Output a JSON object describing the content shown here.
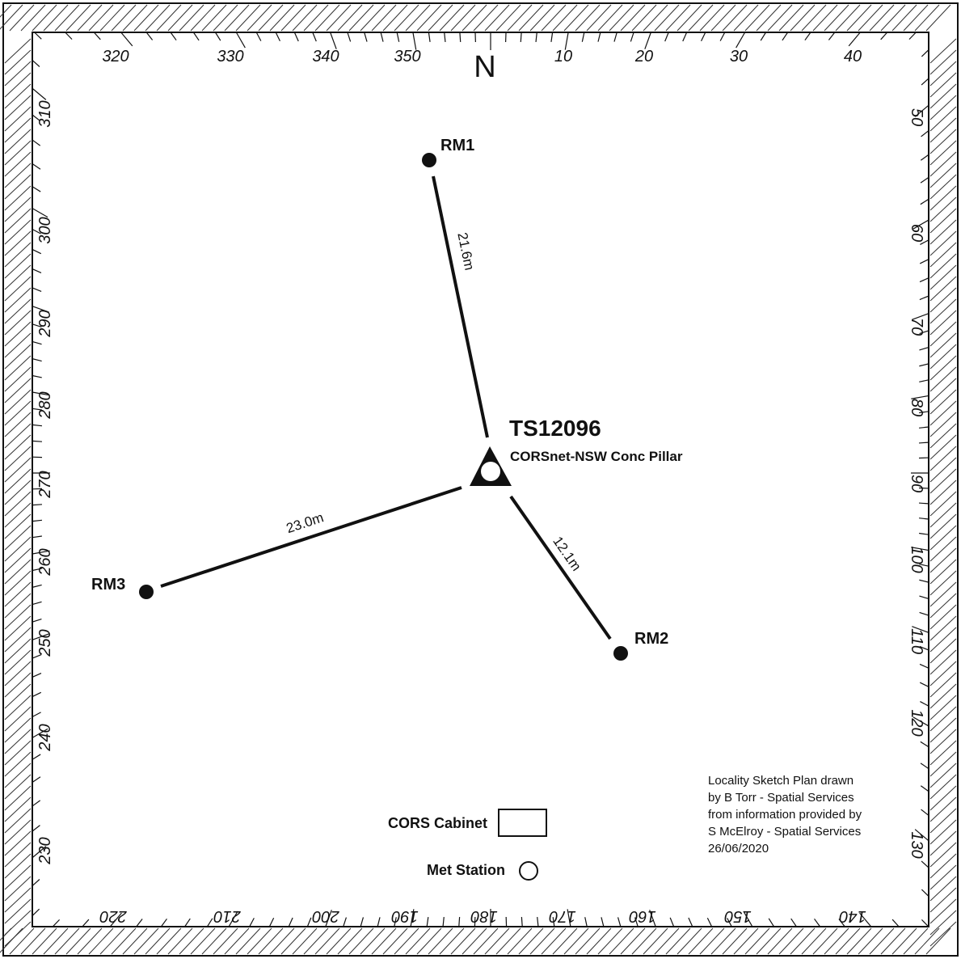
{
  "north_label": "N",
  "mark": {
    "id": "TS12096",
    "description": "CORSnet-NSW Conc Pillar"
  },
  "reference_marks": [
    {
      "name": "RM1",
      "distance": "21.6m"
    },
    {
      "name": "RM2",
      "distance": "12.1m"
    },
    {
      "name": "RM3",
      "distance": "23.0m"
    }
  ],
  "bearing_labels": {
    "top": [
      "320",
      "330",
      "340",
      "350",
      "10",
      "20",
      "30",
      "40"
    ],
    "right": [
      "50",
      "60",
      "70",
      "80",
      "90",
      "100",
      "110",
      "120",
      "130"
    ],
    "bottom": [
      "220",
      "210",
      "200",
      "190",
      "180",
      "170",
      "160",
      "150",
      "140"
    ],
    "left": [
      "310",
      "300",
      "290",
      "280",
      "270",
      "260",
      "250",
      "240",
      "230"
    ]
  },
  "legend": {
    "cabinet_label": "CORS Cabinet",
    "met_label": "Met Station"
  },
  "credit": [
    "Locality Sketch Plan drawn",
    "by B Torr - Spatial Services",
    "from information provided by",
    "S McElroy - Spatial Services",
    "26/06/2020"
  ]
}
